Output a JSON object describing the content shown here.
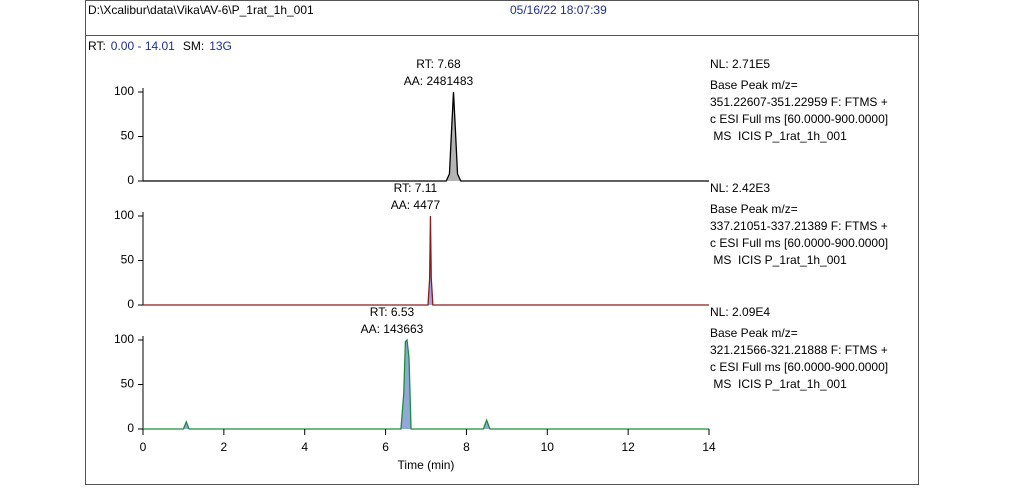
{
  "header": {
    "path": "D:\\Xcalibur\\data\\Vika\\AV-6\\P_1rat_1h_001",
    "date": "05/16/22 18:07:39"
  },
  "range_info": {
    "rt_label": "RT:",
    "rt_range": "0.00 - 14.01",
    "sm_label": "SM:",
    "sm": "13G"
  },
  "chart_data": [
    {
      "type": "line",
      "color": "#000000",
      "fill_color": "#b4b4b4",
      "x": [
        0,
        7.5,
        7.58,
        7.63,
        7.68,
        7.73,
        7.78,
        7.86,
        14
      ],
      "values": [
        0,
        0,
        8,
        55,
        100,
        55,
        8,
        0,
        0
      ],
      "xlim": [
        0,
        14
      ],
      "ylim": [
        0,
        100
      ],
      "yticks": [
        0,
        50,
        100
      ],
      "peak_label": [
        "RT: 7.68",
        "AA: 2481483"
      ],
      "info": [
        "NL: 2.71E5",
        "Base Peak m/z=",
        "351.22607-351.22959 F: FTMS +",
        "c ESI Full ms [60.0000-900.0000]",
        " MS  ICIS P_1rat_1h_001"
      ]
    },
    {
      "type": "line",
      "color": "#8b1c1c",
      "fill_color": "#9aa8e0",
      "x": [
        0,
        7.05,
        7.09,
        7.11,
        7.13,
        7.17,
        14
      ],
      "values": [
        0,
        0,
        30,
        100,
        30,
        0,
        0
      ],
      "xlim": [
        0,
        14
      ],
      "ylim": [
        0,
        100
      ],
      "yticks": [
        0,
        50,
        100
      ],
      "peak_label": [
        "RT: 7.11",
        "AA: 4477"
      ],
      "info": [
        "NL: 2.42E3",
        "Base Peak m/z=",
        "337.21051-337.21389 F: FTMS +",
        "c ESI Full ms [60.0000-900.0000]",
        " MS  ICIS P_1rat_1h_001"
      ]
    },
    {
      "type": "line",
      "color": "#1e8c3c",
      "fill_color": "#8fa8d8",
      "x": [
        0,
        1.0,
        1.07,
        1.14,
        6.38,
        6.45,
        6.49,
        6.53,
        6.58,
        6.63,
        8.42,
        8.5,
        8.58,
        14
      ],
      "values": [
        0,
        0,
        8,
        0,
        0,
        40,
        98,
        100,
        80,
        0,
        0,
        10,
        0,
        0
      ],
      "xlim": [
        0,
        14
      ],
      "ylim": [
        0,
        100
      ],
      "yticks": [
        0,
        50,
        100
      ],
      "xticks": [
        0,
        2,
        4,
        6,
        8,
        10,
        12,
        14
      ],
      "xlabel": "Time (min)",
      "peak_label": [
        "RT: 6.53",
        "AA: 143663"
      ],
      "info": [
        "NL: 2.09E4",
        "Base Peak m/z=",
        "321.21566-321.21888 F: FTMS +",
        "c ESI Full ms [60.0000-900.0000]",
        " MS  ICIS P_1rat_1h_001"
      ]
    }
  ]
}
